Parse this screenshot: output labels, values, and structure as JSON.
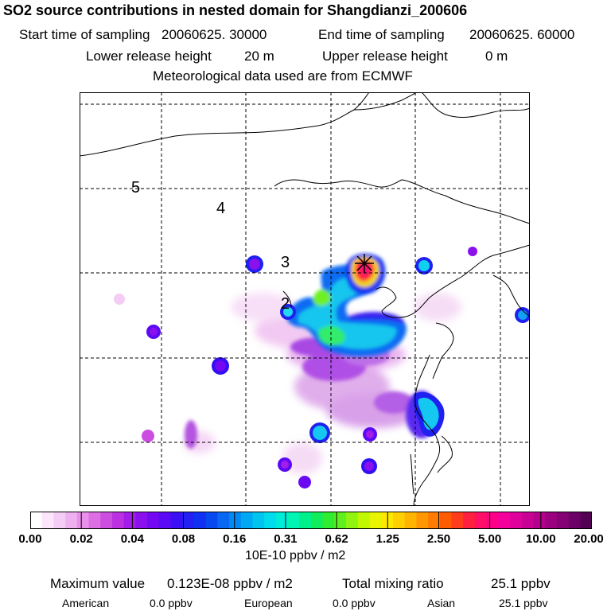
{
  "header": {
    "title": "SO2 source contributions in nested domain for Shangdianzi_200606",
    "start_label": "Start time of sampling",
    "start_value": "20060625. 30000",
    "end_label": "End time of sampling",
    "end_value": "20060625. 60000",
    "lower_label": "Lower release height",
    "lower_value": "20 m",
    "upper_label": "Upper release height",
    "upper_value": "0 m",
    "met": "Meteorological data used are from ECMWF"
  },
  "map": {
    "contour_labels": [
      "5",
      "4",
      "3",
      "2"
    ],
    "receptor_symbol": "asterisk-marker"
  },
  "colorbar": {
    "ticks": [
      "0.00",
      "0.02",
      "0.04",
      "0.08",
      "0.16",
      "0.31",
      "0.62",
      "1.25",
      "2.50",
      "5.00",
      "10.00",
      "20.00"
    ],
    "colors": [
      "#ffffff",
      "#fbe6fb",
      "#f5ccf5",
      "#efb0ef",
      "#e890ea",
      "#dd6ee4",
      "#cc4ee0",
      "#bb30e0",
      "#a31cea",
      "#8a10ee",
      "#7308f2",
      "#5a0af4",
      "#3c10f4",
      "#2420f4",
      "#1030f2",
      "#0848f0",
      "#0868f2",
      "#0088f4",
      "#00a8f4",
      "#00c4f0",
      "#00dcec",
      "#00ecd8",
      "#00f4b4",
      "#00f08c",
      "#10ec5c",
      "#30ec30",
      "#60f020",
      "#90f410",
      "#c0f800",
      "#e8f400",
      "#fce800",
      "#ffd000",
      "#ffb400",
      "#ff9800",
      "#ff7c00",
      "#ff5c00",
      "#ff3c1c",
      "#ff2040",
      "#ff1066",
      "#ff0088",
      "#f4009c",
      "#e0009c",
      "#c80094",
      "#b4008a",
      "#9c0080",
      "#840074",
      "#6c0066",
      "#540054"
    ],
    "units": "10E-10 ppbv / m2"
  },
  "footer": {
    "max_label": "Maximum value",
    "max_value": "0.123E-08 ppbv / m2",
    "total_label": "Total mixing ratio",
    "total_value": "25.1 ppbv",
    "american_label": "American",
    "american_value": "0.0 ppbv",
    "european_label": "European",
    "european_value": "0.0 ppbv",
    "asian_label": "Asian",
    "asian_value": "25.1 ppbv"
  }
}
